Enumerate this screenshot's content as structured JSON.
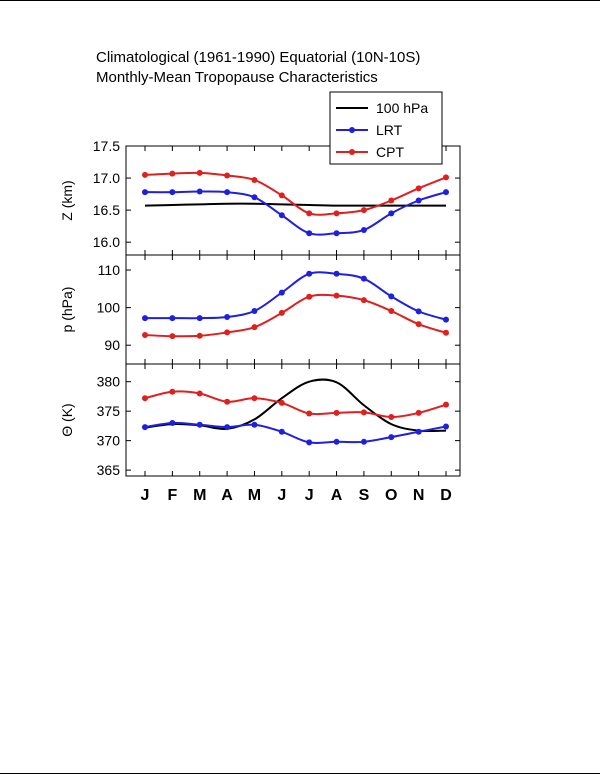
{
  "title": {
    "line1": "Climatological (1961-1990) Equatorial (10N-10S)",
    "line2": "Monthly-Mean Tropopause Characteristics"
  },
  "colors": {
    "p100": "#000000",
    "lrt": "#1f1fe0",
    "cpt": "#e01f1f"
  },
  "chart_data": [
    {
      "type": "line",
      "panel": "top",
      "ylabel": "Z (km)",
      "ylim": [
        15.8,
        17.5
      ],
      "yticks": [
        16.0,
        16.5,
        17.0,
        17.5
      ],
      "categories": [
        "J",
        "F",
        "M",
        "A",
        "M",
        "J",
        "J",
        "A",
        "S",
        "O",
        "N",
        "D"
      ],
      "series": [
        {
          "name": "100 hPa",
          "color": "#000000",
          "markers": false,
          "values": [
            16.57,
            16.58,
            16.59,
            16.6,
            16.6,
            16.59,
            16.58,
            16.57,
            16.57,
            16.57,
            16.57,
            16.57
          ]
        },
        {
          "name": "LRT",
          "color": "#1f1fe0",
          "markers": true,
          "values": [
            16.78,
            16.78,
            16.79,
            16.78,
            16.7,
            16.42,
            16.14,
            16.14,
            16.19,
            16.45,
            16.65,
            16.78
          ]
        },
        {
          "name": "CPT",
          "color": "#e01f1f",
          "markers": true,
          "values": [
            17.05,
            17.07,
            17.08,
            17.04,
            16.97,
            16.73,
            16.45,
            16.45,
            16.5,
            16.65,
            16.84,
            17.01
          ]
        }
      ],
      "legend": "top-right"
    },
    {
      "type": "line",
      "panel": "middle",
      "ylabel": "p (hPa)",
      "ylim": [
        85,
        114
      ],
      "yticks": [
        90,
        100,
        110
      ],
      "categories": [
        "J",
        "F",
        "M",
        "A",
        "M",
        "J",
        "J",
        "A",
        "S",
        "O",
        "N",
        "D"
      ],
      "series": [
        {
          "name": "LRT",
          "color": "#1f1fe0",
          "markers": true,
          "values": [
            97.2,
            97.2,
            97.2,
            97.5,
            99.1,
            104.0,
            109.0,
            109.0,
            107.7,
            103.0,
            99.0,
            96.8
          ]
        },
        {
          "name": "CPT",
          "color": "#e01f1f",
          "markers": true,
          "values": [
            92.7,
            92.4,
            92.5,
            93.4,
            94.8,
            98.6,
            102.9,
            103.2,
            102.0,
            99.1,
            95.6,
            93.3
          ]
        }
      ]
    },
    {
      "type": "line",
      "panel": "bottom",
      "ylabel": "Θ (K)",
      "ylim": [
        364,
        383
      ],
      "yticks": [
        365,
        370,
        375,
        380
      ],
      "categories": [
        "J",
        "F",
        "M",
        "A",
        "M",
        "J",
        "J",
        "A",
        "S",
        "O",
        "N",
        "D"
      ],
      "series": [
        {
          "name": "100 hPa",
          "color": "#000000",
          "markers": false,
          "values": [
            372.2,
            372.8,
            372.6,
            372.0,
            373.6,
            377.2,
            380.0,
            379.9,
            376.0,
            372.8,
            371.7,
            371.7
          ]
        },
        {
          "name": "LRT",
          "color": "#1f1fe0",
          "markers": true,
          "values": [
            372.3,
            373.0,
            372.7,
            372.3,
            372.7,
            371.5,
            369.7,
            369.8,
            369.8,
            370.6,
            371.5,
            372.4
          ]
        },
        {
          "name": "CPT",
          "color": "#e01f1f",
          "markers": true,
          "values": [
            377.2,
            378.3,
            378.0,
            376.6,
            377.2,
            376.4,
            374.6,
            374.7,
            374.8,
            374.0,
            374.7,
            376.1
          ]
        }
      ]
    }
  ]
}
